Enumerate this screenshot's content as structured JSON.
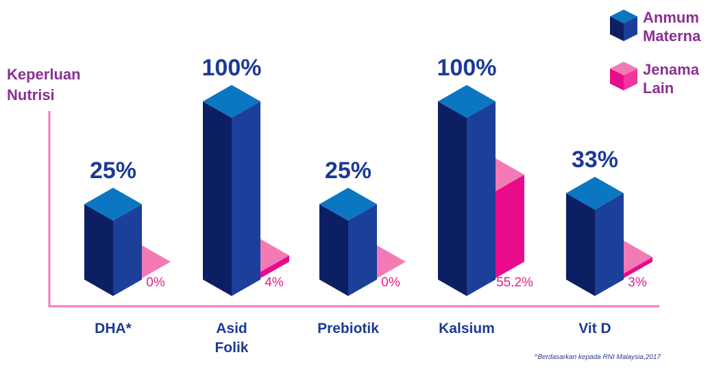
{
  "chart_data": {
    "type": "bar",
    "ylabel_lines": [
      "Keperluan",
      "Nutrisi"
    ],
    "categories": [
      [
        "DHA*"
      ],
      [
        "Asid",
        "Folik"
      ],
      [
        "Prebiotik"
      ],
      [
        "Kalsium"
      ],
      [
        "Vit D"
      ]
    ],
    "series": [
      {
        "name_lines": [
          "Anmum",
          "Materna"
        ],
        "values": [
          25,
          100,
          25,
          100,
          33
        ],
        "labels": [
          "25%",
          "100%",
          "25%",
          "100%",
          "33%"
        ],
        "colors": {
          "top": "#0b76c1",
          "front": "#0c1f63",
          "side": "#1c3f9a"
        }
      },
      {
        "name_lines": [
          "Jenama",
          "Lain"
        ],
        "values": [
          0,
          4,
          0,
          55.2,
          3
        ],
        "labels": [
          "0%",
          "4%",
          "0%",
          "55.2%",
          "3%"
        ],
        "colors": {
          "top": "#f27bb6",
          "front": "#ea0a8c"
        }
      }
    ],
    "ylim": [
      0,
      100
    ],
    "colors": {
      "axis": "#f27bb6",
      "primary_label": "#1c3a96",
      "secondary_label": "#e0218a",
      "title": "#8b2f92"
    }
  },
  "footnote": "^Berdasarkan kepada RNI Malaysia,2017"
}
